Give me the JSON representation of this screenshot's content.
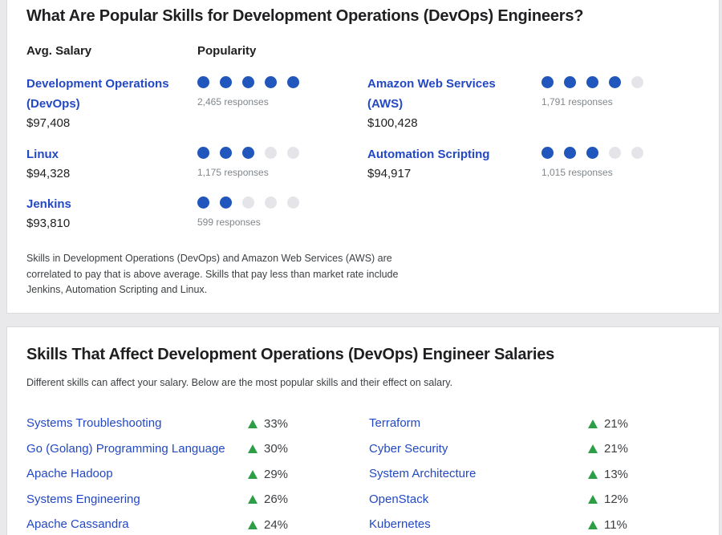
{
  "theme": {
    "page_bg": "#e9e9ec",
    "card_bg": "#ffffff",
    "link_blue": "#2348c4",
    "dot_filled": "#2156bd",
    "dot_empty": "#e5e5e9",
    "positive_green": "#2d9e46",
    "muted_gray": "#80868b"
  },
  "popular_skills": {
    "title": "What Are Popular Skills for Development Operations (DevOps) Engineers?",
    "headers": {
      "salary": "Avg. Salary",
      "popularity": "Popularity"
    },
    "dots_total": 5,
    "columns": [
      [
        {
          "name": "Development Operations (DevOps)",
          "salary": "$97,408",
          "dots_filled": 5,
          "responses": "2,465 responses"
        },
        {
          "name": "Linux",
          "salary": "$94,328",
          "dots_filled": 3,
          "responses": "1,175 responses"
        },
        {
          "name": "Jenkins",
          "salary": "$93,810",
          "dots_filled": 2,
          "responses": "599 responses"
        }
      ],
      [
        {
          "name": "Amazon Web Services (AWS)",
          "salary": "$100,428",
          "dots_filled": 4,
          "responses": "1,791 responses"
        },
        {
          "name": "Automation Scripting",
          "salary": "$94,917",
          "dots_filled": 3,
          "responses": "1,015 responses"
        }
      ]
    ],
    "summary": "Skills in Development Operations (DevOps) and Amazon Web Services (AWS) are correlated to pay that is above average. Skills that pay less than market rate include Jenkins, Automation Scripting and Linux."
  },
  "salary_effects": {
    "title": "Skills That Affect Development Operations (DevOps) Engineer Salaries",
    "subtitle": "Different skills can affect your salary. Below are the most popular skills and their effect on salary.",
    "columns": [
      [
        {
          "name": "Systems Troubleshooting",
          "change": "33%",
          "direction": "up"
        },
        {
          "name": "Go (Golang) Programming Language",
          "change": "30%",
          "direction": "up"
        },
        {
          "name": "Apache Hadoop",
          "change": "29%",
          "direction": "up"
        },
        {
          "name": "Systems Engineering",
          "change": "26%",
          "direction": "up"
        },
        {
          "name": "Apache Cassandra",
          "change": "24%",
          "direction": "up"
        }
      ],
      [
        {
          "name": "Terraform",
          "change": "21%",
          "direction": "up"
        },
        {
          "name": "Cyber Security",
          "change": "21%",
          "direction": "up"
        },
        {
          "name": "System Architecture",
          "change": "13%",
          "direction": "up"
        },
        {
          "name": "OpenStack",
          "change": "12%",
          "direction": "up"
        },
        {
          "name": "Kubernetes",
          "change": "11%",
          "direction": "up"
        }
      ]
    ]
  }
}
